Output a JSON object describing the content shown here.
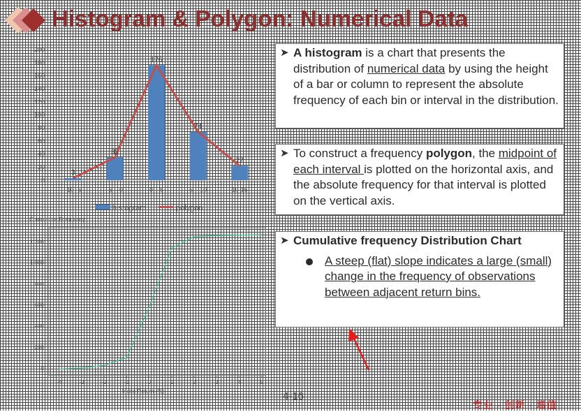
{
  "slide": {
    "title": "Histogram & Polygon: Numerical Data",
    "page_number": "4-16",
    "footer_tag": "专业 · 创新 · 增值"
  },
  "text_panels": {
    "histogram": {
      "term": "A histogram",
      "text_a": " is a chart that presents the distribution of ",
      "underlined": "numerical data",
      "text_b": " by using the height of a bar or column to represent the absolute frequency of each bin or interval in the distribution."
    },
    "polygon": {
      "text_a": "To construct a frequency ",
      "term": "polygon",
      "text_b": ", the ",
      "underlined": "midpoint of each interval ",
      "text_c": "is plotted on the horizontal axis, and the absolute frequency for that interval is plotted on the vertical axis."
    },
    "cumulative": {
      "heading": "Cumulative frequency Distribution Chart",
      "bullet": "A steep (flat) slope indicates a large (small) change in the frequency of observations between adjacent return bins."
    }
  },
  "annotation_color": "#e51c1c",
  "chart_data": [
    {
      "type": "bar",
      "categories": [
        "-10--5",
        "-5 – 0",
        "0 – 5",
        "5 – 10",
        "10-15"
      ],
      "series": [
        {
          "name": "histogram",
          "values": [
            3,
            35,
            176,
            74,
            22
          ],
          "color": "#4f81bd"
        },
        {
          "name": "polygon",
          "values": [
            3,
            35,
            176,
            74,
            22
          ],
          "color": "#c0504d",
          "kind": "line"
        }
      ],
      "data_labels": [
        "3",
        "35",
        "176",
        "74",
        "22"
      ],
      "ylim": [
        0,
        200
      ],
      "yticks": [
        "0",
        "20",
        "40",
        "60",
        "80",
        "100",
        "120",
        "140",
        "160",
        "180",
        "200"
      ],
      "legend_position": "bottom"
    },
    {
      "type": "line",
      "title": "Cumulative Frequency",
      "xlabel": "Index Return (%)",
      "x": [
        -4,
        -3,
        -2,
        -1,
        0,
        1,
        2,
        3,
        4,
        5
      ],
      "series": [
        {
          "values": [
            -10,
            0,
            25,
            100,
            580,
            1140,
            1248,
            1258,
            1262,
            1266
          ],
          "color": "#3fbf97"
        }
      ],
      "xticks": [
        "-4",
        "-3",
        "-2",
        "-1",
        "0",
        "1",
        "2",
        "3",
        "4",
        "5"
      ],
      "yticks": [
        "0",
        "200",
        "400",
        "600",
        "800",
        "1,000",
        "1,200"
      ],
      "ylim": [
        -60,
        1320
      ],
      "xlim": [
        -4.4,
        5.1
      ]
    }
  ]
}
